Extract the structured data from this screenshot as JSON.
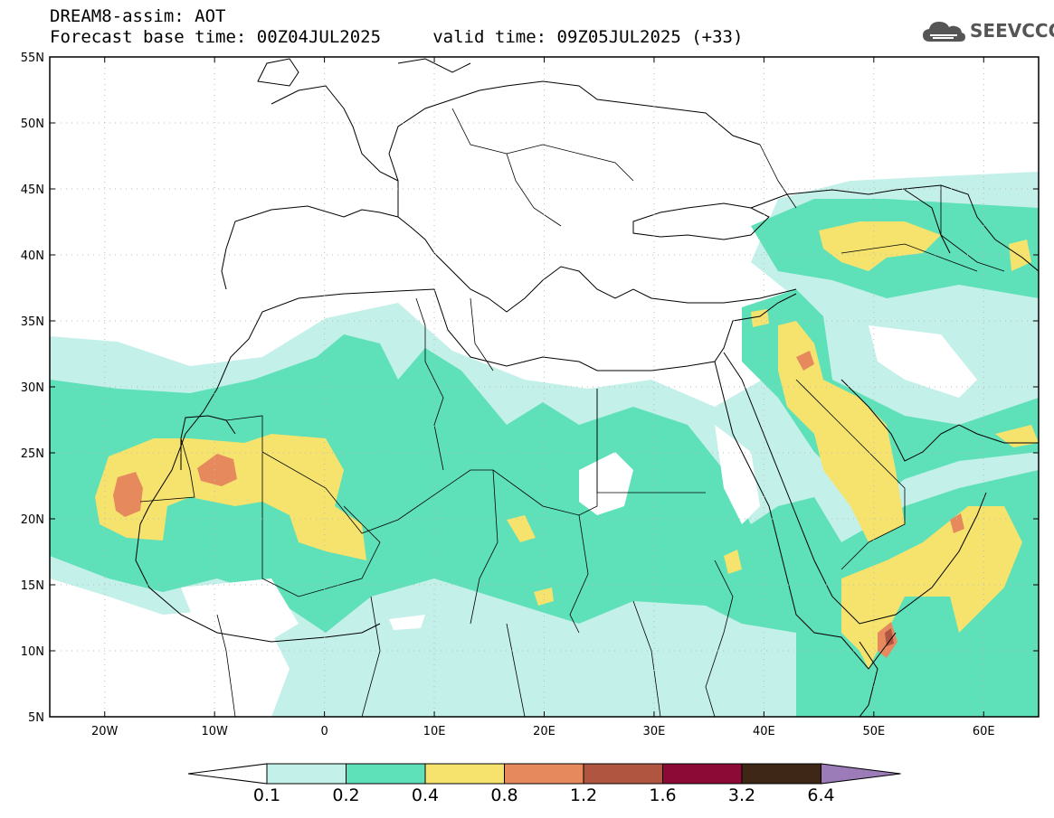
{
  "header": {
    "model_line": "DREAM8-assim: AOT",
    "time_line": "Forecast base time: 00Z04JUL2025     valid time: 09Z05JUL2025 (+33)"
  },
  "logo": {
    "text": "SEEVCCC",
    "icon": "cloud-icon"
  },
  "map": {
    "lon_range": [
      -25,
      65
    ],
    "lat_range": [
      5,
      55
    ],
    "lat_ticks": [
      "5N",
      "10N",
      "15N",
      "20N",
      "25N",
      "30N",
      "35N",
      "40N",
      "45N",
      "50N",
      "55N"
    ],
    "lon_ticks": [
      "20W",
      "10W",
      "0",
      "10E",
      "20E",
      "30E",
      "40E",
      "50E",
      "60E"
    ]
  },
  "colorbar": {
    "colors": [
      "#ffffff",
      "#c4f0ea",
      "#5ee0b8",
      "#f5e36e",
      "#e68a5e",
      "#b05540",
      "#8c0a36",
      "#3e2716",
      "#9b7bb8"
    ],
    "labels": [
      "0.1",
      "0.2",
      "0.4",
      "0.8",
      "1.2",
      "1.6",
      "3.2",
      "6.4"
    ]
  }
}
